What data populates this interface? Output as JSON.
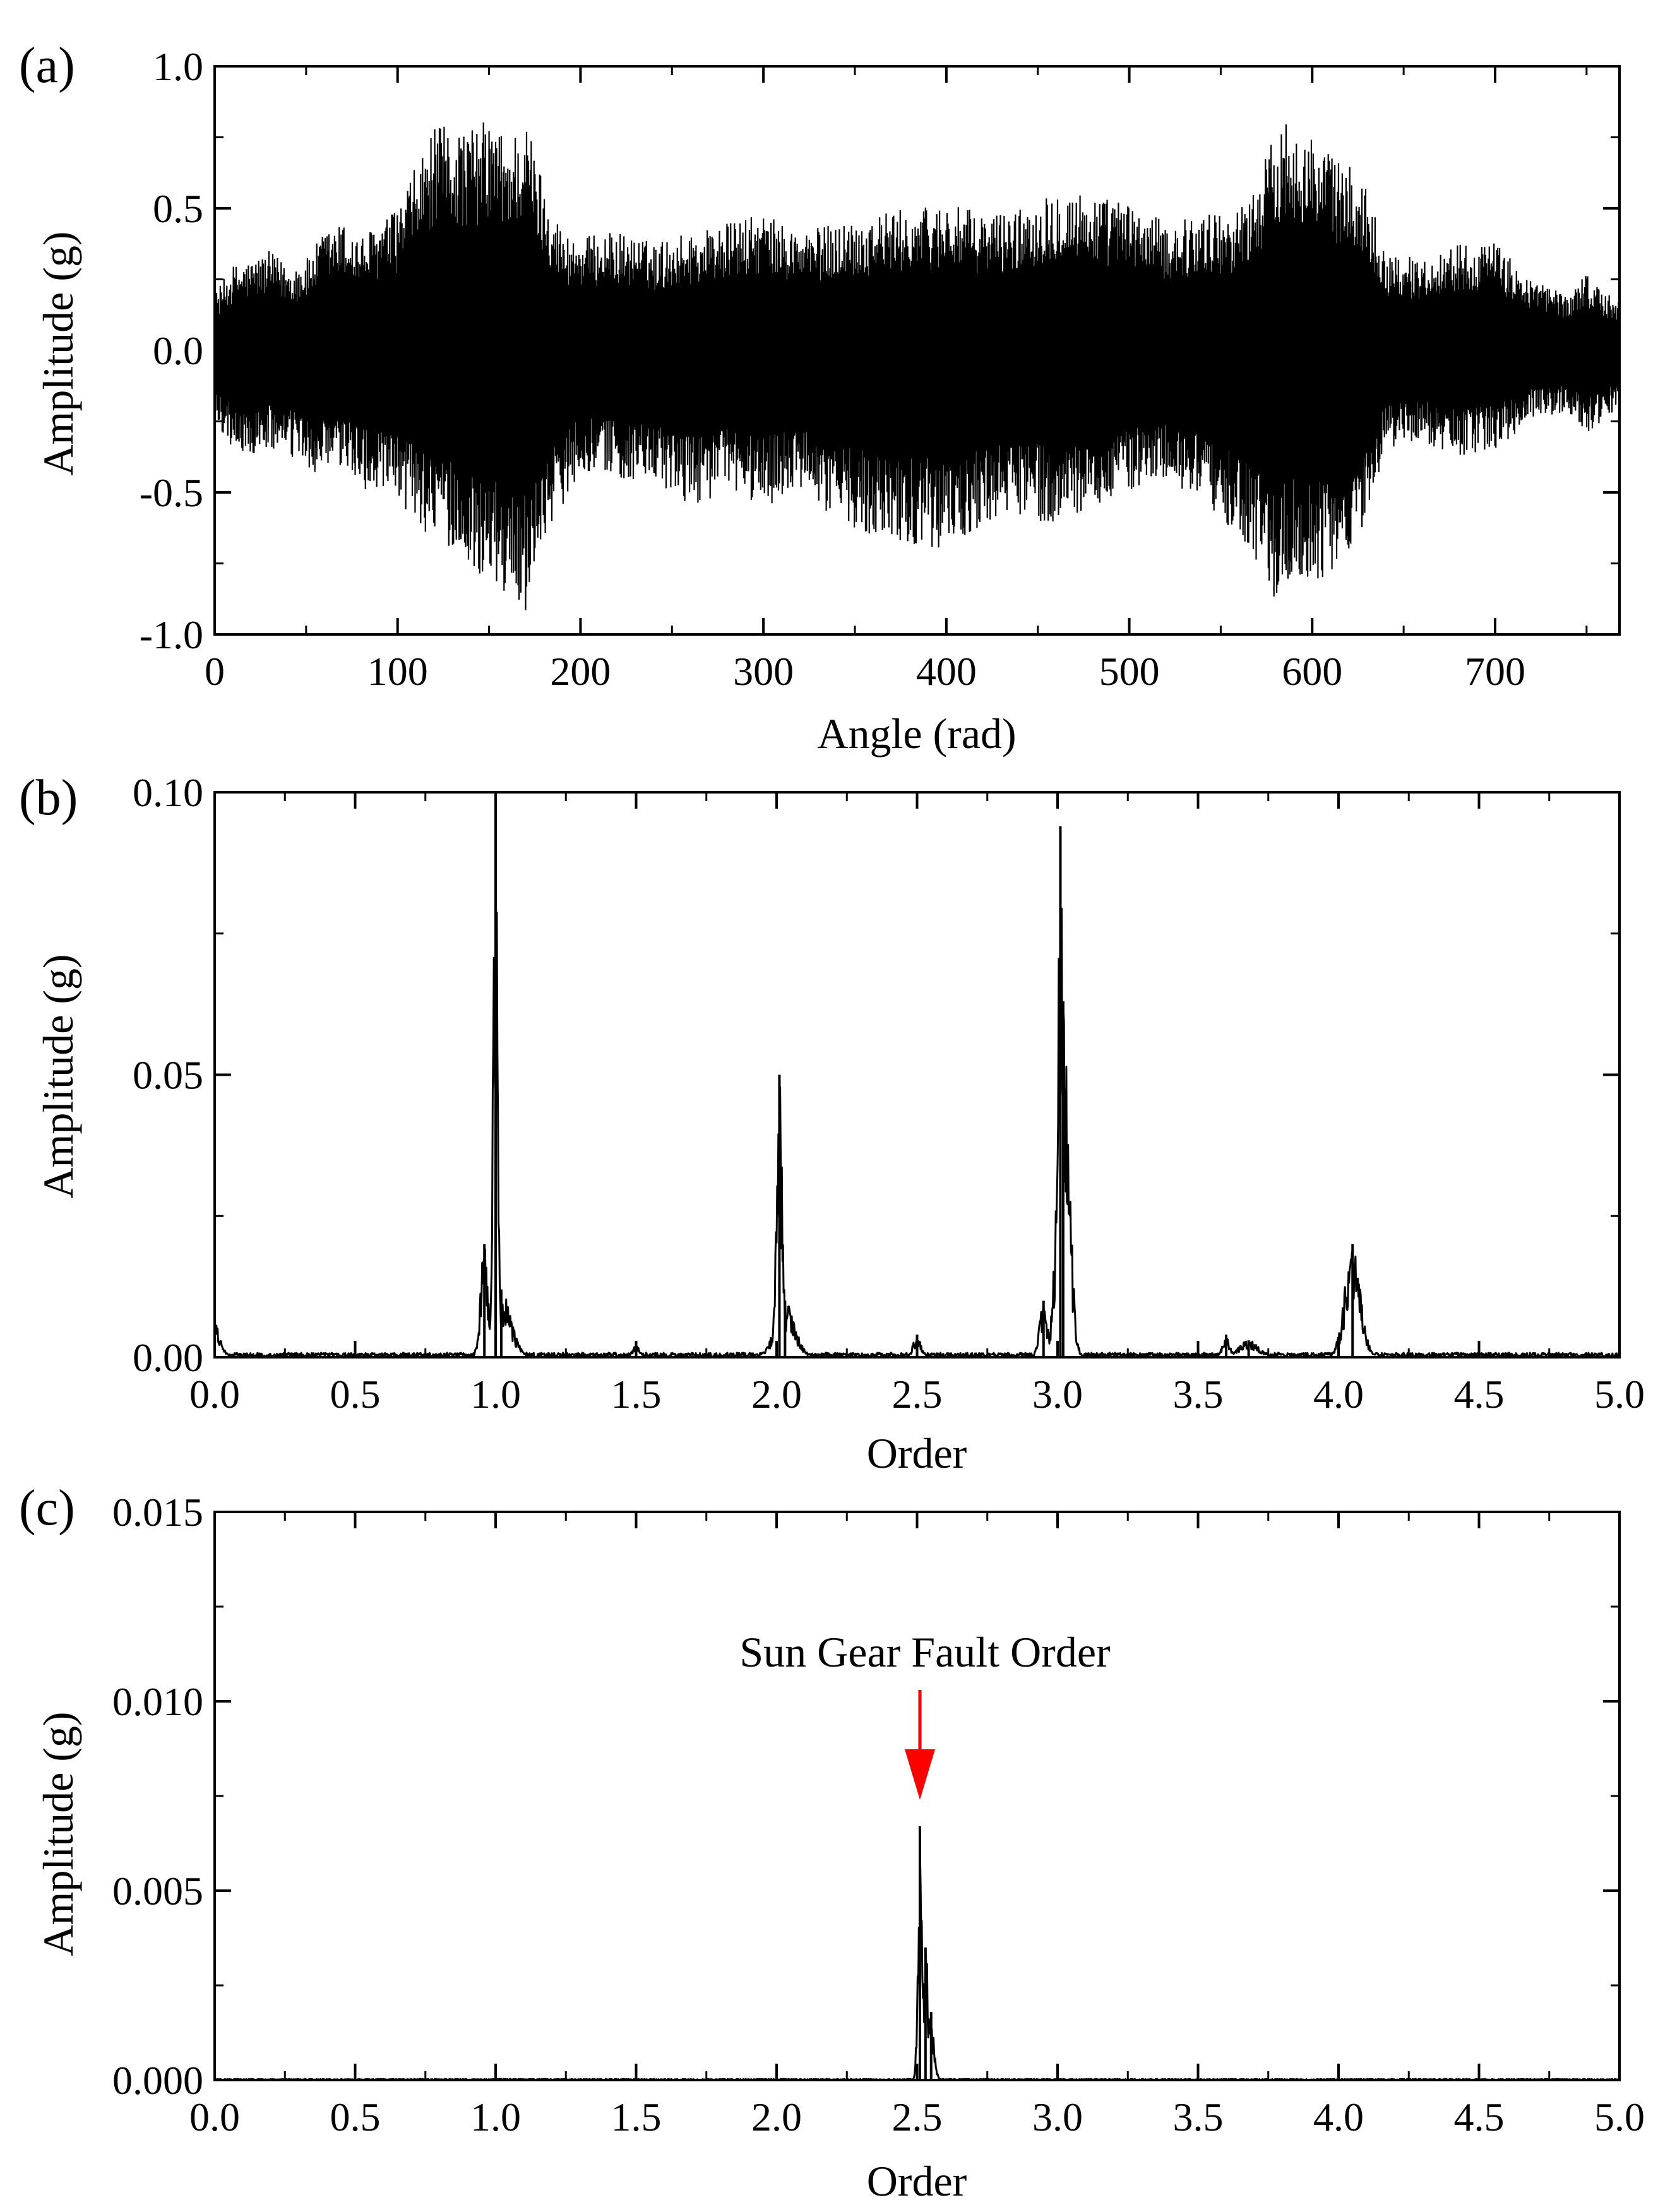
{
  "chart_data": [
    {
      "panel_label": "(a)",
      "type": "line",
      "xlabel": "Angle (rad)",
      "ylabel": "Amplitude (g)",
      "xlim": [
        0,
        768
      ],
      "ylim": [
        -1.0,
        1.0
      ],
      "x_ticks": [
        0,
        100,
        200,
        300,
        400,
        500,
        600,
        700
      ],
      "x_tick_labels": [
        "0",
        "100",
        "200",
        "300",
        "400",
        "500",
        "600",
        "700"
      ],
      "y_ticks": [
        -1.0,
        -0.5,
        0.0,
        0.5,
        1.0
      ],
      "y_tick_labels": [
        "-1.0",
        "-0.5",
        "0.0",
        "0.5",
        "1.0"
      ],
      "series": [
        {
          "envelope_x": [
            0,
            10,
            20,
            30,
            40,
            50,
            60,
            70,
            80,
            90,
            100,
            110,
            120,
            130,
            140,
            150,
            160,
            170,
            180,
            190,
            200,
            220,
            240,
            260,
            280,
            300,
            320,
            340,
            360,
            380,
            400,
            420,
            440,
            460,
            480,
            500,
            520,
            540,
            560,
            570,
            580,
            590,
            600,
            610,
            620,
            630,
            640,
            660,
            680,
            700,
            720,
            740,
            750,
            760,
            768
          ],
          "envelope_upper": [
            0.2,
            0.3,
            0.32,
            0.35,
            0.3,
            0.32,
            0.42,
            0.45,
            0.4,
            0.45,
            0.5,
            0.65,
            0.78,
            0.8,
            0.78,
            0.82,
            0.75,
            0.82,
            0.6,
            0.42,
            0.4,
            0.42,
            0.38,
            0.42,
            0.45,
            0.48,
            0.42,
            0.45,
            0.48,
            0.5,
            0.52,
            0.48,
            0.5,
            0.58,
            0.55,
            0.52,
            0.45,
            0.48,
            0.5,
            0.6,
            0.78,
            0.85,
            0.75,
            0.7,
            0.65,
            0.58,
            0.35,
            0.32,
            0.38,
            0.38,
            0.25,
            0.2,
            0.28,
            0.2,
            0.18
          ],
          "envelope_lower": [
            -0.25,
            -0.35,
            -0.38,
            -0.35,
            -0.38,
            -0.42,
            -0.45,
            -0.42,
            -0.48,
            -0.52,
            -0.55,
            -0.6,
            -0.68,
            -0.7,
            -0.78,
            -0.8,
            -0.88,
            -0.92,
            -0.65,
            -0.55,
            -0.42,
            -0.45,
            -0.48,
            -0.55,
            -0.5,
            -0.55,
            -0.5,
            -0.6,
            -0.65,
            -0.68,
            -0.7,
            -0.62,
            -0.58,
            -0.62,
            -0.55,
            -0.5,
            -0.45,
            -0.55,
            -0.65,
            -0.75,
            -0.88,
            -0.82,
            -0.85,
            -0.78,
            -0.72,
            -0.6,
            -0.35,
            -0.32,
            -0.38,
            -0.35,
            -0.25,
            -0.22,
            -0.3,
            -0.25,
            -0.2
          ]
        }
      ]
    },
    {
      "panel_label": "(b)",
      "type": "line",
      "xlabel": "Order",
      "ylabel": "Amplitude (g)",
      "xlim": [
        0,
        5
      ],
      "ylim": [
        0,
        0.1
      ],
      "x_ticks": [
        0,
        0.5,
        1.0,
        1.5,
        2.0,
        2.5,
        3.0,
        3.5,
        4.0,
        4.5,
        5.0
      ],
      "x_tick_labels": [
        "0.0",
        "0.5",
        "1.0",
        "1.5",
        "2.0",
        "2.5",
        "3.0",
        "3.5",
        "4.0",
        "4.5",
        "5.0"
      ],
      "y_ticks": [
        0,
        0.05,
        0.1
      ],
      "y_tick_labels": [
        "0.00",
        "0.05",
        "0.10"
      ],
      "series": [
        {
          "peaks": [
            {
              "x": 0.0,
              "y": 0.006,
              "width": 0.03
            },
            {
              "x": 0.96,
              "y": 0.02,
              "width": 0.02
            },
            {
              "x": 1.0,
              "y": 0.1,
              "width": 0.012
            },
            {
              "x": 1.02,
              "y": 0.012,
              "width": 0.05
            },
            {
              "x": 1.5,
              "y": 0.002,
              "width": 0.02
            },
            {
              "x": 2.01,
              "y": 0.05,
              "width": 0.015
            },
            {
              "x": 2.03,
              "y": 0.01,
              "width": 0.05
            },
            {
              "x": 2.5,
              "y": 0.004,
              "width": 0.02
            },
            {
              "x": 2.95,
              "y": 0.01,
              "width": 0.02
            },
            {
              "x": 3.01,
              "y": 0.094,
              "width": 0.012
            },
            {
              "x": 3.02,
              "y": 0.063,
              "width": 0.03
            },
            {
              "x": 3.6,
              "y": 0.004,
              "width": 0.02
            },
            {
              "x": 3.68,
              "y": 0.003,
              "width": 0.05
            },
            {
              "x": 4.05,
              "y": 0.02,
              "width": 0.04
            }
          ]
        }
      ]
    },
    {
      "panel_label": "(c)",
      "type": "line",
      "xlabel": "Order",
      "ylabel": "Amplitude (g)",
      "xlim": [
        0,
        5
      ],
      "ylim": [
        0,
        0.015
      ],
      "x_ticks": [
        0,
        0.5,
        1.0,
        1.5,
        2.0,
        2.5,
        3.0,
        3.5,
        4.0,
        4.5,
        5.0
      ],
      "x_tick_labels": [
        "0.0",
        "0.5",
        "1.0",
        "1.5",
        "2.0",
        "2.5",
        "3.0",
        "3.5",
        "4.0",
        "4.5",
        "5.0"
      ],
      "y_ticks": [
        0,
        0.005,
        0.01,
        0.015
      ],
      "y_tick_labels": [
        "0.000",
        "0.005",
        "0.010",
        "0.015"
      ],
      "series": [
        {
          "peaks": [
            {
              "x": 2.51,
              "y": 0.0067,
              "width": 0.01
            },
            {
              "x": 2.53,
              "y": 0.0035,
              "width": 0.015
            },
            {
              "x": 2.55,
              "y": 0.0018,
              "width": 0.015
            }
          ]
        }
      ],
      "annotation": {
        "text": "Sun Gear Fault Order",
        "arrow_x": 2.51,
        "arrow_tip_y": 0.0074,
        "arrow_tail_y": 0.0103,
        "color": "#ff0000"
      }
    }
  ]
}
